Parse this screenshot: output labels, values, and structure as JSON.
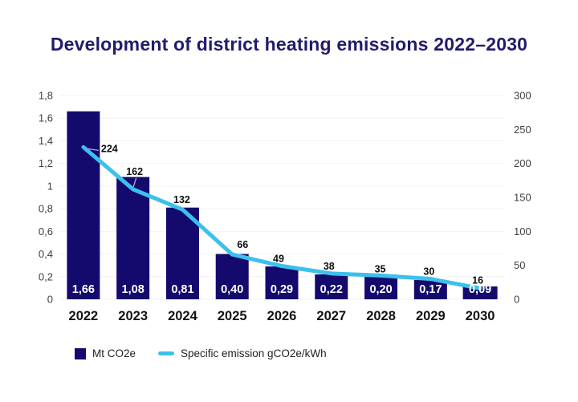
{
  "title": "Development of district heating emissions 2022–2030",
  "chart_data": {
    "type": "bar",
    "subtype": "combo bar + line, dual y-axis",
    "title": "Development of district heating emissions 2022–2030",
    "categories": [
      "2022",
      "2023",
      "2024",
      "2025",
      "2026",
      "2027",
      "2028",
      "2029",
      "2030"
    ],
    "series": [
      {
        "name": "Mt CO2e",
        "type": "bar",
        "axis": "left",
        "color": "#140a6e",
        "values": [
          1.66,
          1.08,
          0.81,
          0.4,
          0.29,
          0.22,
          0.2,
          0.17,
          0.09
        ],
        "value_labels": [
          "1,66",
          "1,08",
          "0,81",
          "0,40",
          "0,29",
          "0,22",
          "0,20",
          "0,17",
          "0,09"
        ]
      },
      {
        "name": "Specific emission gCO2e/kWh",
        "type": "line",
        "axis": "right",
        "color": "#3cc0ec",
        "values": [
          224,
          162,
          132,
          66,
          49,
          38,
          35,
          30,
          16
        ],
        "value_labels": [
          "224",
          "162",
          "132",
          "66",
          "49",
          "38",
          "35",
          "30",
          "16"
        ]
      }
    ],
    "left_axis": {
      "min": 0,
      "max": 1.8,
      "tick_labels": [
        "0",
        "0,2",
        "0,4",
        "0,6",
        "0,8",
        "1",
        "1,2",
        "1,4",
        "1,6",
        "1,8"
      ]
    },
    "right_axis": {
      "min": 0,
      "max": 300,
      "tick_labels": [
        "0",
        "50",
        "100",
        "150",
        "200",
        "250",
        "300"
      ]
    },
    "grid": "horizontal gridlines only",
    "legend_position": "bottom-left"
  },
  "colors": {
    "background": "#ffffff",
    "bar": "#140a6e",
    "line": "#3cc0ec",
    "title": "#211c6b",
    "grid": "#f2f2f2",
    "axis_text": "#3f3f3f",
    "category_text": "#121212",
    "point_label_text": "#0d0d0d",
    "bar_label_text": "#ffffff",
    "leader_line": "#b9a3e0",
    "legend_text": "#1f1f1f"
  }
}
